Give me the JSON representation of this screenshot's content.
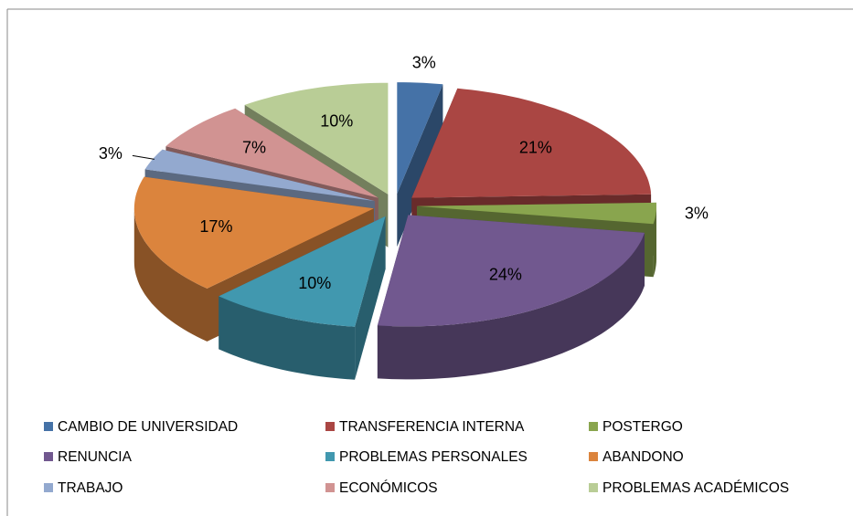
{
  "chart_data": {
    "type": "pie",
    "categories": [
      "CAMBIO DE UNIVERSIDAD",
      "TRANSFERENCIA INTERNA",
      "POSTERGO",
      "RENUNCIA",
      "PROBLEMAS PERSONALES",
      "ABANDONO",
      "TRABAJO",
      "ECONÓMICOS",
      "PROBLEMAS ACADÉMICOS"
    ],
    "values": [
      3,
      21,
      3,
      24,
      10,
      17,
      3,
      7,
      10
    ],
    "value_labels": [
      "3%",
      "21%",
      "3%",
      "24%",
      "10%",
      "17%",
      "3%",
      "7%",
      "10%"
    ],
    "colors": [
      "#4572a7",
      "#aa4643",
      "#89a54e",
      "#71588f",
      "#4198af",
      "#db843d",
      "#93a9cf",
      "#d19392",
      "#b9cd96"
    ],
    "legend": "bottom"
  }
}
